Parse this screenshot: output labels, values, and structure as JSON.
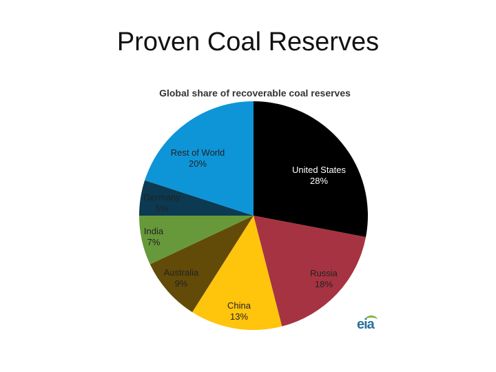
{
  "slide": {
    "title": "Proven Coal Reserves"
  },
  "logo": {
    "text": "eia"
  },
  "chart_data": {
    "type": "pie",
    "title": "Global share of recoverable coal reserves",
    "unit": "%",
    "slices": [
      {
        "label": "United States",
        "value": 28,
        "value_label": "28%",
        "color": "#000000",
        "text_color": "#ffffff"
      },
      {
        "label": "Russia",
        "value": 18,
        "value_label": "18%",
        "color": "#a63341",
        "text_color": "#222222"
      },
      {
        "label": "China",
        "value": 13,
        "value_label": "13%",
        "color": "#ffc40c",
        "text_color": "#222222"
      },
      {
        "label": "Australia",
        "value": 9,
        "value_label": "9%",
        "color": "#624b08",
        "text_color": "#222222"
      },
      {
        "label": "India",
        "value": 7,
        "value_label": "7%",
        "color": "#67993a",
        "text_color": "#222222"
      },
      {
        "label": "Germany",
        "value": 5,
        "value_label": "5%",
        "color": "#0b3a52",
        "text_color": "#222222"
      },
      {
        "label": "Rest of World",
        "value": 20,
        "value_label": "20%",
        "color": "#0e95d8",
        "text_color": "#222222"
      }
    ]
  }
}
